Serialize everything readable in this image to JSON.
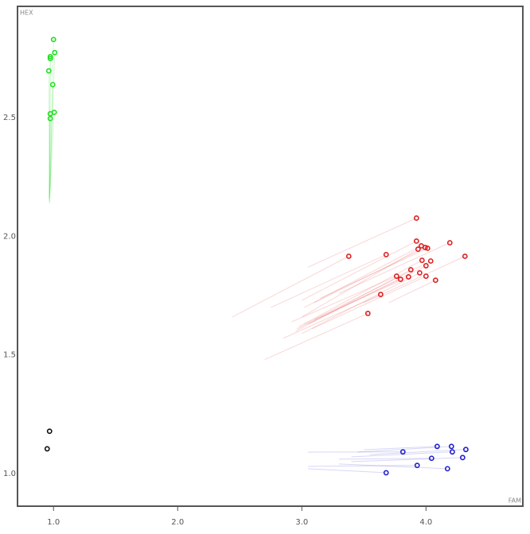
{
  "chart_data": {
    "type": "scatter",
    "xlabel": "FAM",
    "ylabel": "HEX",
    "xlim": [
      0.71,
      4.78
    ],
    "ylim": [
      0.862,
      2.97
    ],
    "xticks": [
      {
        "value": 1,
        "label": "1.0"
      },
      {
        "value": 2,
        "label": "2.0"
      },
      {
        "value": 3,
        "label": "3.0"
      },
      {
        "value": 4,
        "label": "4.0"
      }
    ],
    "yticks": [
      {
        "value": 1,
        "label": "1.0"
      },
      {
        "value": 1.5,
        "label": "1.5"
      },
      {
        "value": 2,
        "label": "2.0"
      },
      {
        "value": 2.5,
        "label": "2.5"
      }
    ],
    "grid": false,
    "series": [
      {
        "color": "#22dd22",
        "x": [
          1.0,
          1.01,
          0.974,
          0.974,
          0.962,
          0.994,
          1.006,
          0.974,
          0.974
        ],
        "values": [
          2.83,
          2.775,
          2.758,
          2.75,
          2.698,
          2.64,
          2.523,
          2.517,
          2.497
        ],
        "trail_x": [
          0.97,
          0.968,
          0.966,
          0.968,
          0.966,
          0.97,
          0.972,
          0.968,
          0.966
        ],
        "trail_y": [
          2.14,
          2.15,
          2.14,
          2.16,
          2.15,
          2.18,
          2.2,
          2.17,
          2.16
        ]
      },
      {
        "color": "#dd2222",
        "x": [
          3.923,
          3.378,
          3.679,
          3.923,
          3.962,
          3.994,
          4.013,
          3.936,
          4.192,
          4.314,
          3.968,
          4.038,
          4.0,
          3.878,
          3.949,
          4.0,
          3.763,
          3.795,
          3.859,
          4.077,
          3.635,
          3.532
        ],
        "values": [
          2.077,
          1.916,
          1.923,
          1.98,
          1.96,
          1.953,
          1.95,
          1.946,
          1.973,
          1.916,
          1.899,
          1.896,
          1.876,
          1.859,
          1.846,
          1.832,
          1.832,
          1.819,
          1.829,
          1.815,
          1.755,
          1.675
        ],
        "trail_x": [
          3.05,
          2.44,
          2.75,
          3.0,
          3.02,
          3.1,
          3.15,
          3.0,
          3.3,
          3.5,
          2.98,
          3.1,
          3.05,
          2.95,
          3.0,
          3.08,
          2.92,
          2.96,
          3.02,
          3.7,
          2.85,
          2.7
        ],
        "trail_y": [
          1.87,
          1.66,
          1.7,
          1.73,
          1.7,
          1.72,
          1.74,
          1.66,
          1.76,
          1.72,
          1.62,
          1.65,
          1.63,
          1.6,
          1.59,
          1.61,
          1.64,
          1.61,
          1.63,
          1.72,
          1.57,
          1.48
        ]
      },
      {
        "color": "#2222cc",
        "x": [
          4.09,
          4.205,
          4.321,
          4.212,
          3.814,
          4.295,
          4.045,
          3.929,
          4.173,
          3.679
        ],
        "values": [
          1.114,
          1.114,
          1.101,
          1.091,
          1.091,
          1.067,
          1.064,
          1.034,
          1.02,
          1.003
        ],
        "trail_x": [
          3.5,
          3.45,
          3.55,
          3.4,
          3.05,
          3.4,
          3.3,
          3.05,
          3.3,
          3.05
        ],
        "trail_y": [
          1.1,
          1.09,
          1.08,
          1.07,
          1.09,
          1.05,
          1.06,
          1.03,
          1.04,
          1.02
        ]
      },
      {
        "color": "#111111",
        "x": [
          0.968,
          0.949
        ],
        "values": [
          1.178,
          1.104
        ]
      }
    ]
  }
}
